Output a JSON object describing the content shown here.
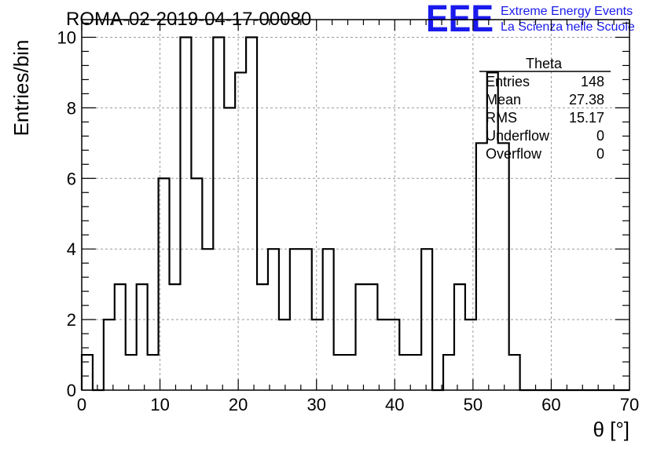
{
  "run_title": "ROMA-02-2019-04-17-00080",
  "brand": {
    "logo": "EEE",
    "line1": "Extreme Energy Events",
    "line2": "La Scienza nelle Scuole",
    "color": "#1a1aee"
  },
  "stats": {
    "title": "Theta",
    "rows": [
      {
        "label": "Entries",
        "value": "148"
      },
      {
        "label": "Mean",
        "value": "27.38"
      },
      {
        "label": "RMS",
        "value": "15.17"
      },
      {
        "label": "Underflow",
        "value": "0"
      },
      {
        "label": "Overflow",
        "value": "0"
      }
    ]
  },
  "chart_data": {
    "type": "histogram",
    "title": "ROMA-02-2019-04-17-00080",
    "xlabel": "θ [°]",
    "ylabel": "Entries/bin",
    "xlim": [
      0,
      70
    ],
    "ylim": [
      0,
      10.5
    ],
    "grid": true,
    "bin_width": 1.4,
    "xticks": [
      0,
      10,
      20,
      30,
      40,
      50,
      60,
      70
    ],
    "yticks": [
      0,
      2,
      4,
      6,
      8,
      10
    ],
    "counts": [
      1,
      0,
      2,
      3,
      1,
      3,
      1,
      6,
      3,
      10,
      6,
      4,
      10,
      8,
      9,
      10,
      3,
      4,
      2,
      4,
      4,
      2,
      4,
      1,
      1,
      3,
      3,
      2,
      2,
      1,
      1,
      4,
      0,
      1,
      3,
      2,
      7,
      9,
      7,
      1,
      0,
      0,
      0,
      0,
      0,
      0,
      0,
      0,
      0,
      0
    ]
  }
}
